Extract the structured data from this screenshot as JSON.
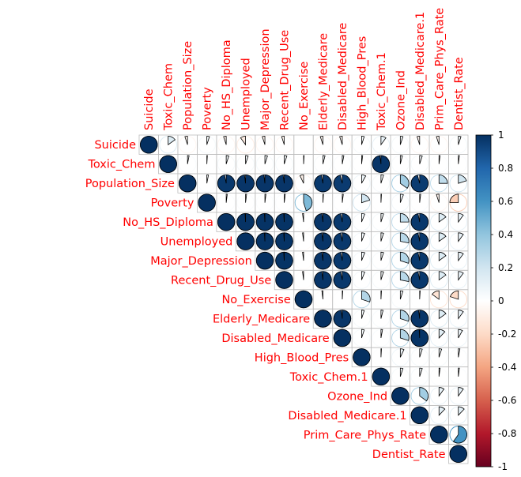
{
  "chart_data": {
    "type": "corrplot-pie",
    "shape": "upper-triangle",
    "variables": [
      "Suicide",
      "Toxic_Chem",
      "Population_Size",
      "Poverty",
      "No_HS_Diploma",
      "Unemployed",
      "Major_Depression",
      "Recent_Drug_Use",
      "No_Exercise",
      "Elderly_Medicare",
      "Disabled_Medicare",
      "High_Blood_Pres",
      "Toxic_Chem.1",
      "Ozone_Ind",
      "Disabled_Medicare.1",
      "Prim_Care_Phys_Rate",
      "Dentist_Rate"
    ],
    "matrix": [
      [
        1.0,
        0.15,
        -0.05,
        0.05,
        -0.05,
        -0.1,
        -0.05,
        -0.05,
        0.0,
        -0.05,
        -0.05,
        0.05,
        0.1,
        0.05,
        -0.05,
        -0.05,
        0.05
      ],
      [
        0.15,
        1.0,
        0.03,
        0.01,
        0.05,
        0.05,
        0.05,
        0.05,
        0.01,
        0.04,
        0.03,
        0.02,
        0.98,
        0.04,
        0.05,
        0.02,
        0.02
      ],
      [
        -0.05,
        0.03,
        1.0,
        0.03,
        0.97,
        0.98,
        0.98,
        0.98,
        -0.07,
        0.97,
        0.96,
        0.08,
        0.05,
        0.35,
        0.96,
        0.25,
        0.2
      ],
      [
        0.05,
        0.01,
        0.03,
        1.0,
        0.02,
        0.02,
        0.02,
        0.02,
        0.45,
        0.01,
        0.02,
        0.2,
        0.01,
        0.06,
        0.02,
        -0.05,
        -0.25
      ],
      [
        -0.05,
        0.05,
        0.97,
        0.02,
        1.0,
        0.99,
        0.99,
        0.99,
        -0.02,
        0.98,
        0.97,
        0.06,
        0.05,
        0.25,
        0.97,
        0.15,
        0.1
      ],
      [
        -0.1,
        0.05,
        0.98,
        0.02,
        0.99,
        1.0,
        0.99,
        0.99,
        -0.02,
        0.98,
        0.97,
        0.06,
        0.05,
        0.28,
        0.97,
        0.15,
        0.1
      ],
      [
        -0.05,
        0.05,
        0.98,
        0.02,
        0.99,
        0.99,
        1.0,
        0.99,
        -0.02,
        0.98,
        0.97,
        0.06,
        0.05,
        0.3,
        0.97,
        0.15,
        0.1
      ],
      [
        -0.05,
        0.05,
        0.98,
        0.02,
        0.99,
        0.99,
        0.99,
        1.0,
        -0.02,
        0.98,
        0.97,
        0.06,
        0.05,
        0.28,
        0.97,
        0.15,
        0.1
      ],
      [
        0.0,
        0.01,
        -0.07,
        0.45,
        -0.02,
        -0.02,
        -0.02,
        -0.02,
        1.0,
        -0.02,
        0.01,
        0.3,
        0.01,
        0.05,
        0.01,
        -0.15,
        -0.2
      ],
      [
        -0.05,
        0.04,
        0.97,
        0.01,
        0.98,
        0.98,
        0.98,
        0.98,
        -0.02,
        1.0,
        0.98,
        0.05,
        0.04,
        0.3,
        0.98,
        0.15,
        0.1
      ],
      [
        -0.05,
        0.03,
        0.96,
        0.02,
        0.97,
        0.97,
        0.97,
        0.97,
        0.01,
        0.98,
        1.0,
        0.05,
        0.03,
        0.3,
        0.99,
        0.12,
        0.08
      ],
      [
        0.05,
        0.02,
        0.08,
        0.2,
        0.06,
        0.06,
        0.06,
        0.06,
        0.3,
        0.05,
        0.05,
        1.0,
        0.01,
        0.07,
        0.05,
        0.05,
        0.03
      ],
      [
        0.1,
        0.98,
        0.05,
        0.01,
        0.05,
        0.05,
        0.05,
        0.05,
        0.01,
        0.04,
        0.03,
        0.01,
        1.0,
        0.05,
        0.05,
        0.02,
        0.02
      ],
      [
        0.05,
        0.04,
        0.35,
        0.06,
        0.25,
        0.28,
        0.3,
        0.28,
        0.05,
        0.3,
        0.3,
        0.07,
        0.05,
        1.0,
        0.35,
        0.1,
        0.1
      ],
      [
        -0.05,
        0.05,
        0.96,
        0.02,
        0.97,
        0.97,
        0.97,
        0.97,
        0.01,
        0.98,
        0.99,
        0.05,
        0.05,
        0.35,
        1.0,
        0.12,
        0.12
      ],
      [
        -0.05,
        0.02,
        0.25,
        -0.05,
        0.15,
        0.15,
        0.15,
        0.15,
        -0.15,
        0.15,
        0.12,
        0.05,
        0.02,
        0.1,
        0.12,
        1.0,
        0.6
      ],
      [
        0.05,
        0.02,
        0.2,
        -0.25,
        0.1,
        0.1,
        0.1,
        0.1,
        -0.2,
        0.1,
        0.08,
        0.03,
        0.02,
        0.1,
        0.12,
        0.6,
        1.0
      ]
    ],
    "colorbar": {
      "ticks": [
        "1",
        "0.8",
        "0.6",
        "0.4",
        "0.2",
        "0",
        "-0.2",
        "-0.4",
        "-0.6",
        "-0.8",
        "-1"
      ],
      "range": [
        -1,
        1
      ],
      "colors": [
        "#67001F",
        "#B2182B",
        "#D6604D",
        "#F4A582",
        "#FDDBC7",
        "#FFFFFF",
        "#D1E5F0",
        "#92C5DE",
        "#4393C3",
        "#2166AC",
        "#053061"
      ]
    },
    "label_color": "#FF0000",
    "grid_color": "#BEBEBE"
  }
}
